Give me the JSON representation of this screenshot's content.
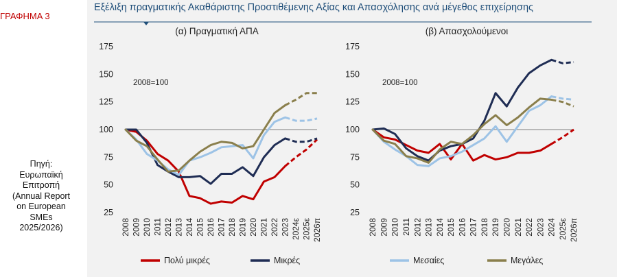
{
  "figure_label": "ΓΡΑΦΗΜΑ 3",
  "source_lines": [
    "Πηγή:",
    "Ευρωπαϊκή",
    "Επιτροπή",
    "(Annual Report",
    "on European",
    "SMEs",
    "2025/2026)"
  ],
  "title": "Εξέλιξη πραγματικής Ακαθάριστης Προστιθέμενης Αξίας και Απασχόλησης ανά μέγεθος επιχείρησης",
  "colors": {
    "title": "#1f4e79",
    "label": "#c00000",
    "panel_bg": "#f2f2f2",
    "very_small": "#c00000",
    "small": "#1f2d54",
    "medium": "#9dc3e6",
    "large": "#8a7f4c"
  },
  "legend": [
    {
      "key": "very_small",
      "label": "Πολύ μικρές"
    },
    {
      "key": "small",
      "label": "Μικρές"
    },
    {
      "key": "medium",
      "label": "Μεσαίες"
    },
    {
      "key": "large",
      "label": "Μεγάλες"
    }
  ],
  "chart_data": [
    {
      "type": "line",
      "title": "(α) Πραγματική ΑΠΑ",
      "annotation": "2008=100",
      "reference_line": 100,
      "ylim": [
        25,
        175
      ],
      "yticks": [
        25,
        50,
        75,
        100,
        125,
        150,
        175
      ],
      "categories": [
        "2008",
        "2009",
        "2010",
        "2011",
        "2012",
        "2013",
        "2014",
        "2015",
        "2016",
        "2017",
        "2018",
        "2019",
        "2020",
        "2021",
        "2022",
        "2023",
        "2024ε",
        "2025ε",
        "2026π"
      ],
      "forecast_from_index": 15,
      "series": [
        {
          "name": "Πολύ μικρές",
          "key": "very_small",
          "values": [
            100,
            98,
            90,
            78,
            72,
            62,
            40,
            38,
            33,
            35,
            34,
            40,
            37,
            53,
            57,
            67,
            75,
            82,
            91
          ]
        },
        {
          "name": "Μικρές",
          "key": "small",
          "values": [
            100,
            100,
            88,
            68,
            62,
            57,
            57,
            58,
            51,
            60,
            60,
            66,
            58,
            75,
            86,
            92,
            89,
            89,
            92
          ]
        },
        {
          "name": "Μεσαίες",
          "key": "medium",
          "values": [
            100,
            91,
            78,
            72,
            64,
            59,
            72,
            75,
            79,
            84,
            85,
            86,
            74,
            95,
            107,
            111,
            108,
            108,
            110
          ]
        },
        {
          "name": "Μεγάλες",
          "key": "large",
          "values": [
            100,
            90,
            85,
            73,
            62,
            63,
            72,
            80,
            86,
            89,
            88,
            83,
            85,
            100,
            115,
            122,
            127,
            133,
            133
          ]
        }
      ]
    },
    {
      "type": "line",
      "title": "(β) Απασχολούμενοι",
      "annotation": "2008=100",
      "reference_line": 100,
      "ylim": [
        25,
        175
      ],
      "yticks": [
        25,
        50,
        75,
        100,
        125,
        150,
        175
      ],
      "categories": [
        "2008",
        "2009",
        "2010",
        "2011",
        "2012",
        "2013",
        "2014",
        "2015",
        "2016",
        "2017",
        "2018",
        "2019",
        "2020",
        "2021",
        "2022",
        "2023",
        "2024",
        "2025ε",
        "2026π"
      ],
      "forecast_from_index": 16,
      "series": [
        {
          "name": "Πολύ μικρές",
          "key": "very_small",
          "values": [
            100,
            93,
            91,
            86,
            81,
            79,
            87,
            73,
            87,
            72,
            77,
            73,
            75,
            79,
            79,
            81,
            87,
            93,
            100
          ]
        },
        {
          "name": "Μικρές",
          "key": "small",
          "values": [
            100,
            101,
            96,
            83,
            76,
            72,
            81,
            85,
            87,
            92,
            108,
            133,
            121,
            138,
            151,
            158,
            163,
            160,
            161
          ]
        },
        {
          "name": "Μεσαίες",
          "key": "medium",
          "values": [
            100,
            89,
            82,
            76,
            68,
            67,
            74,
            76,
            80,
            86,
            92,
            103,
            89,
            103,
            117,
            122,
            130,
            128,
            127
          ]
        },
        {
          "name": "Μεγάλες",
          "key": "large",
          "values": [
            100,
            90,
            87,
            76,
            74,
            70,
            82,
            89,
            87,
            95,
            105,
            113,
            104,
            111,
            120,
            128,
            127,
            125,
            121
          ]
        }
      ]
    }
  ]
}
